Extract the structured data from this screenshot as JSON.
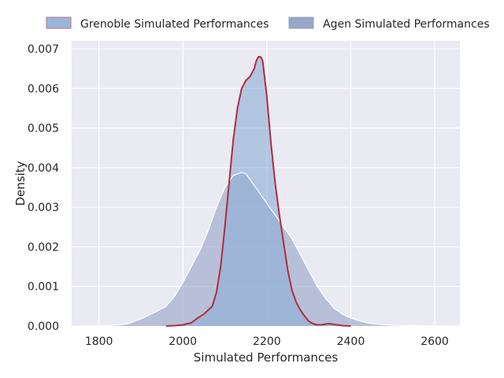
{
  "chart_data": {
    "type": "area",
    "title": "",
    "xlabel": "Simulated Performances",
    "ylabel": "Density",
    "xlim": [
      1735,
      2660
    ],
    "ylim": [
      0,
      0.0072
    ],
    "xticks": [
      1800,
      2000,
      2200,
      2400,
      2600
    ],
    "yticks": [
      0.0,
      0.001,
      0.002,
      0.003,
      0.004,
      0.005,
      0.006,
      0.007
    ],
    "ytick_labels": [
      "0.000",
      "0.001",
      "0.002",
      "0.003",
      "0.004",
      "0.005",
      "0.006",
      "0.007"
    ],
    "grid": true,
    "legend_position": "top",
    "series": [
      {
        "name": "Grenoble Simulated Performances",
        "fill": "#8eaed6",
        "stroke": "#b22b3c",
        "x": [
          1960,
          1980,
          2000,
          2020,
          2035,
          2050,
          2060,
          2070,
          2080,
          2090,
          2100,
          2110,
          2120,
          2130,
          2140,
          2150,
          2160,
          2170,
          2175,
          2180,
          2185,
          2190,
          2200,
          2210,
          2220,
          2230,
          2240,
          2250,
          2260,
          2270,
          2280,
          2290,
          2300,
          2310,
          2320,
          2330,
          2340,
          2350,
          2360,
          2380,
          2400
        ],
        "y": [
          0.0,
          1e-05,
          3e-05,
          8e-05,
          0.0002,
          0.0003,
          0.0004,
          0.0005,
          0.00085,
          0.0015,
          0.0025,
          0.0036,
          0.0047,
          0.0055,
          0.006,
          0.0062,
          0.0063,
          0.0065,
          0.0067,
          0.0068,
          0.0068,
          0.0067,
          0.0058,
          0.0046,
          0.0036,
          0.0028,
          0.0021,
          0.0014,
          0.0009,
          0.0006,
          0.0004,
          0.00025,
          0.00012,
          6e-05,
          3e-05,
          3e-05,
          5e-05,
          6e-05,
          4e-05,
          1e-05,
          0.0
        ]
      },
      {
        "name": "Agen Simulated Performances",
        "fill": "#8d9dc2",
        "stroke": "#ffffff",
        "x": [
          1800,
          1840,
          1870,
          1900,
          1930,
          1960,
          1980,
          2000,
          2020,
          2040,
          2060,
          2080,
          2100,
          2120,
          2140,
          2150,
          2160,
          2180,
          2200,
          2220,
          2240,
          2260,
          2280,
          2300,
          2320,
          2340,
          2360,
          2380,
          2400,
          2420,
          2440,
          2460,
          2500,
          2550,
          2600
        ],
        "y": [
          0.0,
          2e-05,
          6e-05,
          0.00018,
          0.00033,
          0.0005,
          0.00075,
          0.0011,
          0.0015,
          0.0019,
          0.0024,
          0.003,
          0.0035,
          0.0038,
          0.00388,
          0.00385,
          0.0037,
          0.0034,
          0.0031,
          0.0028,
          0.0025,
          0.0022,
          0.0018,
          0.0014,
          0.001,
          0.0007,
          0.00045,
          0.0003,
          0.0002,
          0.00013,
          8e-05,
          5e-05,
          2e-05,
          1e-05,
          0.0
        ]
      }
    ]
  }
}
